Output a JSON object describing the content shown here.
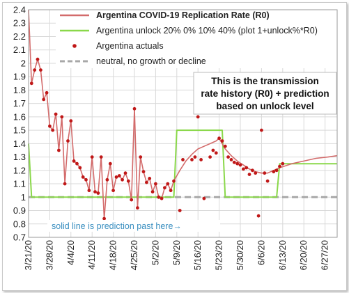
{
  "chart_data": {
    "type": "line",
    "title": "",
    "xlabel": "",
    "ylabel": "",
    "ylim": [
      0.7,
      2.4
    ],
    "y_ticks": [
      "2.4",
      "2.3",
      "2.2",
      "2.1",
      "2",
      "1.9",
      "1.8",
      "1.7",
      "1.6",
      "1.5",
      "1.4",
      "1.3",
      "1.2",
      "1.1",
      "1",
      "0.9",
      "0.8",
      "0.7"
    ],
    "x_ticks": [
      "3/21/20",
      "3/28/20",
      "4/4/20",
      "4/11/20",
      "4/18/20",
      "4/25/20",
      "5/2/20",
      "5/9/20",
      "5/16/20",
      "5/23/20",
      "5/30/20",
      "6/6/20",
      "6/13/20",
      "6/20/20",
      "6/27/20"
    ],
    "x_start_date": "3/21/20",
    "x_end_date": "7/1/20",
    "grid": true,
    "legend_position": "top",
    "series": [
      {
        "name": "Argentina COVID-19 Replication Rate (R0)",
        "color": "#d36b6b",
        "x": [
          "3/21/20",
          "3/22/20",
          "3/23/20",
          "3/24/20",
          "3/25/20",
          "3/26/20",
          "3/27/20",
          "3/28/20",
          "3/29/20",
          "3/30/20",
          "3/31/20",
          "4/1/20",
          "4/2/20",
          "4/3/20",
          "4/4/20",
          "4/5/20",
          "4/6/20",
          "4/7/20",
          "4/8/20",
          "4/9/20",
          "4/10/20",
          "4/11/20",
          "4/12/20",
          "4/13/20",
          "4/14/20",
          "4/15/20",
          "4/16/20",
          "4/17/20",
          "4/18/20",
          "4/19/20",
          "4/20/20",
          "4/21/20",
          "4/22/20",
          "4/23/20",
          "4/24/20",
          "4/25/20",
          "4/26/20",
          "4/27/20",
          "4/28/20",
          "4/29/20",
          "4/30/20",
          "5/1/20",
          "5/2/20",
          "5/3/20",
          "5/4/20",
          "5/5/20",
          "5/6/20",
          "5/7/20",
          "5/8/20",
          "5/10/20",
          "5/12/20",
          "5/14/20",
          "5/16/20",
          "5/18/20",
          "5/20/20",
          "5/22/20",
          "5/23/20",
          "5/24/20",
          "5/25/20",
          "5/27/20",
          "5/29/20",
          "5/31/20",
          "6/2/20",
          "6/4/20",
          "6/6/20",
          "6/8/20",
          "6/10/20",
          "6/12/20",
          "6/16/20",
          "6/20/20",
          "6/24/20",
          "6/28/20",
          "7/1/20"
        ],
        "values": [
          2.4,
          1.85,
          1.95,
          2.03,
          1.95,
          1.73,
          1.78,
          1.53,
          1.5,
          1.62,
          1.35,
          1.6,
          1.1,
          1.42,
          1.57,
          1.27,
          1.25,
          1.22,
          1.15,
          1.13,
          1.05,
          1.3,
          1.04,
          1.03,
          1.3,
          0.84,
          1.13,
          1.25,
          1.05,
          1.15,
          1.16,
          1.13,
          1.18,
          1.12,
          0.98,
          1.66,
          0.92,
          1.3,
          1.19,
          1.11,
          1.14,
          1.04,
          1.1,
          1.0,
          0.99,
          1.07,
          1.1,
          1.05,
          1.12,
          1.2,
          1.27,
          1.32,
          1.36,
          1.38,
          1.4,
          1.42,
          1.44,
          1.4,
          1.36,
          1.31,
          1.27,
          1.24,
          1.21,
          1.19,
          1.18,
          1.18,
          1.2,
          1.22,
          1.25,
          1.27,
          1.29,
          1.3,
          1.31
        ]
      },
      {
        "name": "Argentina unlock 20% 0% 10% 40% (plot 1+unlock%*R0)",
        "color": "#8ad84a",
        "x": [
          "3/21/20",
          "3/22/20",
          "5/8/20",
          "5/9/20",
          "5/24/20",
          "5/25/20",
          "6/11/20",
          "6/12/20",
          "7/1/20"
        ],
        "values": [
          1.4,
          1.0,
          1.0,
          1.5,
          1.5,
          1.0,
          1.0,
          1.25,
          1.25
        ]
      },
      {
        "name": "Argentina actuals",
        "color": "#c01818",
        "x": [
          "3/22/20",
          "3/23/20",
          "3/24/20",
          "3/25/20",
          "3/26/20",
          "3/27/20",
          "3/28/20",
          "3/29/20",
          "3/30/20",
          "3/31/20",
          "4/1/20",
          "4/2/20",
          "4/3/20",
          "4/4/20",
          "4/5/20",
          "4/6/20",
          "4/7/20",
          "4/8/20",
          "4/9/20",
          "4/10/20",
          "4/11/20",
          "4/12/20",
          "4/13/20",
          "4/14/20",
          "4/15/20",
          "4/16/20",
          "4/17/20",
          "4/18/20",
          "4/19/20",
          "4/20/20",
          "4/21/20",
          "4/22/20",
          "4/23/20",
          "4/24/20",
          "4/25/20",
          "4/26/20",
          "4/27/20",
          "4/28/20",
          "4/29/20",
          "4/30/20",
          "5/1/20",
          "5/2/20",
          "5/3/20",
          "5/4/20",
          "5/5/20",
          "5/6/20",
          "5/7/20",
          "5/8/20",
          "5/10/20",
          "5/11/20",
          "5/14/20",
          "5/15/20",
          "5/16/20",
          "5/17/20",
          "5/18/20",
          "5/20/20",
          "5/21/20",
          "5/22/20",
          "5/23/20",
          "5/24/20",
          "5/25/20",
          "5/26/20",
          "5/27/20",
          "5/28/20",
          "5/29/20",
          "5/30/20",
          "5/31/20",
          "6/1/20",
          "6/2/20",
          "6/3/20",
          "6/4/20",
          "6/5/20",
          "6/6/20",
          "6/7/20",
          "6/8/20",
          "6/10/20",
          "6/11/20",
          "6/12/20",
          "6/13/20"
        ],
        "values": [
          1.85,
          1.95,
          2.03,
          1.95,
          1.73,
          1.78,
          1.53,
          1.5,
          1.62,
          1.35,
          1.6,
          1.1,
          1.42,
          1.57,
          1.27,
          1.25,
          1.22,
          1.15,
          1.13,
          1.05,
          1.3,
          1.04,
          1.03,
          1.3,
          0.84,
          1.13,
          1.25,
          1.05,
          1.15,
          1.16,
          1.13,
          1.18,
          1.12,
          0.98,
          1.66,
          0.92,
          1.3,
          1.19,
          1.11,
          1.14,
          1.04,
          1.1,
          1.0,
          0.99,
          1.07,
          1.1,
          1.05,
          1.12,
          0.9,
          1.28,
          1.28,
          1.3,
          1.6,
          1.28,
          0.99,
          1.3,
          1.35,
          1.33,
          1.44,
          1.42,
          1.38,
          1.3,
          1.28,
          1.26,
          1.25,
          1.24,
          1.21,
          1.22,
          1.17,
          1.2,
          1.18,
          0.86,
          1.5,
          1.18,
          1.12,
          1.19,
          1.2,
          1.23,
          1.25
        ]
      },
      {
        "name": "neutral, no growth or decline",
        "color": "#a8a8a8",
        "dashed": true,
        "x": [
          "3/21/20",
          "7/1/20"
        ],
        "values": [
          1.0,
          1.0
        ]
      }
    ],
    "annotations": {
      "box_text": [
        "This is the transmission",
        "rate history (R0) + prediction",
        "based on unlock level"
      ],
      "prediction_note": "solid line is prediction past here→",
      "prediction_marker_date": "5/9/20"
    }
  }
}
